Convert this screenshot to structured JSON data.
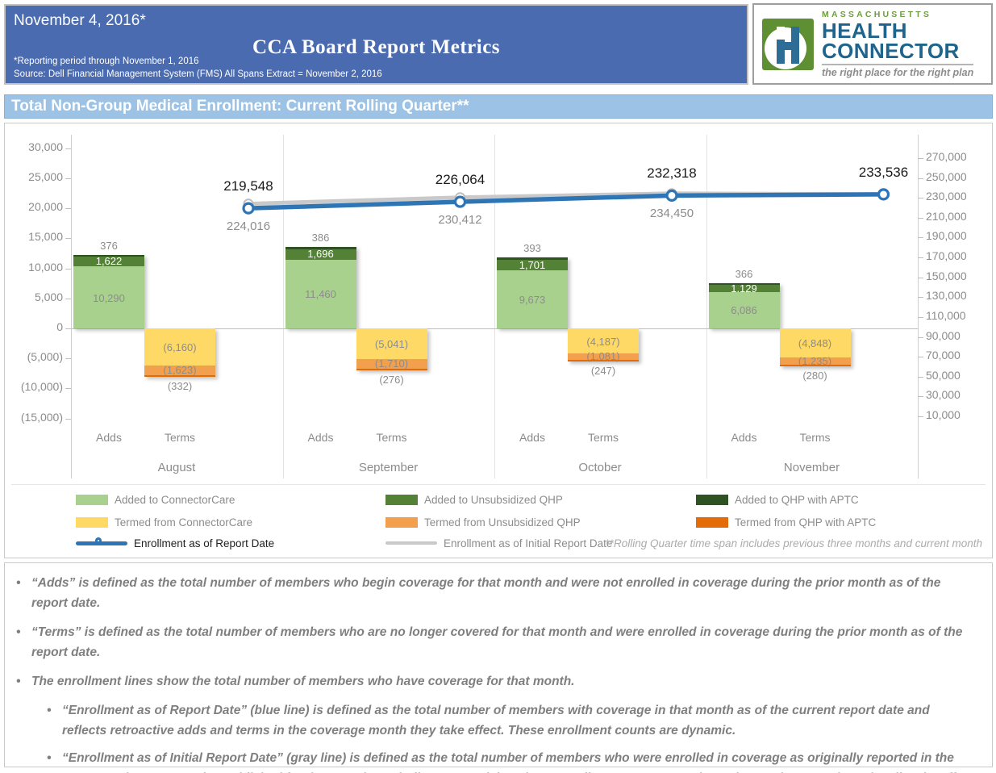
{
  "header": {
    "date": "November 4, 2016*",
    "title": "CCA Board Report Metrics",
    "note1": "*Reporting period through November 1, 2016",
    "note2": "Source: Dell Financial Management System (FMS) All Spans Extract = November 2, 2016"
  },
  "logo": {
    "brand_top": "MASSACHUSETTS",
    "brand_line1": "HEALTH",
    "brand_line2": "CONNECTOR",
    "tagline": "the right place for the right plan",
    "green": "#5e8f33",
    "blue": "#2d6d96"
  },
  "section_title": "Total Non-Group Medical Enrollment: Current Rolling Quarter**",
  "chart_data": {
    "type": "combo-stacked-bar-line",
    "months": [
      "August",
      "September",
      "October",
      "November"
    ],
    "bar_groups": [
      "Adds",
      "Terms"
    ],
    "adds_series": [
      {
        "name": "Added to ConnectorCare",
        "color": "#a9d18e",
        "values": [
          10290,
          11460,
          9673,
          6086
        ]
      },
      {
        "name": "Added to Unsubsidized QHP",
        "color": "#538135",
        "values": [
          1622,
          1696,
          1701,
          1129
        ]
      },
      {
        "name": "Added to QHP with APTC",
        "color": "#2f5222",
        "values": [
          376,
          386,
          393,
          366
        ]
      }
    ],
    "terms_series": [
      {
        "name": "Termed from ConnectorCare",
        "color": "#ffd965",
        "values": [
          -6160,
          -5041,
          -4187,
          -4848
        ]
      },
      {
        "name": "Termed from Unsubsidized QHP",
        "color": "#f2a04e",
        "values": [
          -1623,
          -1710,
          -1081,
          -1235
        ]
      },
      {
        "name": "Termed from QHP with APTC",
        "color": "#e36c09",
        "values": [
          -332,
          -276,
          -247,
          -280
        ]
      }
    ],
    "lines": [
      {
        "name": "Enrollment as of Report Date",
        "color": "#2e75b6",
        "values": [
          219548,
          226064,
          232318,
          233536
        ],
        "labels_shown": [
          true,
          true,
          true,
          true
        ]
      },
      {
        "name": "Enrollment as of Initial Report Date",
        "color": "#c9c9c9",
        "values": [
          224016,
          230412,
          234450,
          233536
        ],
        "labels_shown": [
          true,
          true,
          true,
          false
        ]
      }
    ],
    "left_axis": {
      "values": [
        30000,
        25000,
        20000,
        15000,
        10000,
        5000,
        0,
        -5000,
        -10000,
        -15000
      ],
      "labels": [
        "30,000",
        "25,000",
        "20,000",
        "15,000",
        "10,000",
        "5,000",
        "0",
        "(5,000)",
        "(10,000)",
        "(15,000)"
      ]
    },
    "right_axis": {
      "values": [
        270000,
        250000,
        230000,
        210000,
        190000,
        170000,
        150000,
        130000,
        110000,
        90000,
        70000,
        50000,
        30000,
        10000
      ],
      "labels": [
        "270,000",
        "250,000",
        "230,000",
        "210,000",
        "190,000",
        "170,000",
        "150,000",
        "130,000",
        "110,000",
        "90,000",
        "70,000",
        "50,000",
        "30,000",
        "10,000"
      ]
    },
    "grid": "vertical-month-separators",
    "legend_position": "bottom"
  },
  "legend": {
    "rows": [
      [
        {
          "label": "Added to ConnectorCare",
          "swatch": "#a9d18e"
        },
        {
          "label": "Added to Unsubsidized QHP",
          "swatch": "#538135"
        },
        {
          "label": "Added to QHP with APTC",
          "swatch": "#2f5222"
        }
      ],
      [
        {
          "label": "Termed from ConnectorCare",
          "swatch": "#ffd965"
        },
        {
          "label": "Termed from Unsubsidized QHP",
          "swatch": "#f2a04e"
        },
        {
          "label": "Termed from QHP with APTC",
          "swatch": "#e36c09"
        }
      ]
    ],
    "line_entries": [
      {
        "label": "Enrollment as of Report Date",
        "color": "#2e75b6",
        "marker": true,
        "text_color": "#1f1f1f"
      },
      {
        "label": "Enrollment as of Initial Report Date",
        "color": "#c9c9c9",
        "marker": false,
        "text_color": "#8c8c8c"
      }
    ],
    "footnote": "**Rolling Quarter time span includes previous three months and current month"
  },
  "notes": [
    {
      "indent": 0,
      "lead": "“Adds”",
      "rest": " is defined as the total number of members who begin coverage for that month and were not enrolled in coverage during the prior month as of the report date."
    },
    {
      "indent": 0,
      "lead": "“Terms”",
      "rest": " is defined as the total number of members who are no longer covered for that month and were enrolled in coverage during the prior month as of the report date."
    },
    {
      "indent": 0,
      "lead": "",
      "rest": "The enrollment lines show the total number of members who have coverage for that month."
    },
    {
      "indent": 1,
      "lead": "“Enrollment as of Report Date” (blue line)",
      "rest": " is defined as the total number of members with coverage in that month as of the current report date and reflects retroactive adds and terms in the coverage month they take effect. These enrollment counts are dynamic."
    },
    {
      "indent": 1,
      "lead": "“Enrollment as of Initial Report Date” (gray line)",
      "rest": " is defined as the total number of members who were enrolled in coverage as originally reported in the CCA Board Report Metrics published for that month, excluding retroactivity. These enrollment counts remain static month to month to visualize the effect of retroactivity."
    }
  ]
}
